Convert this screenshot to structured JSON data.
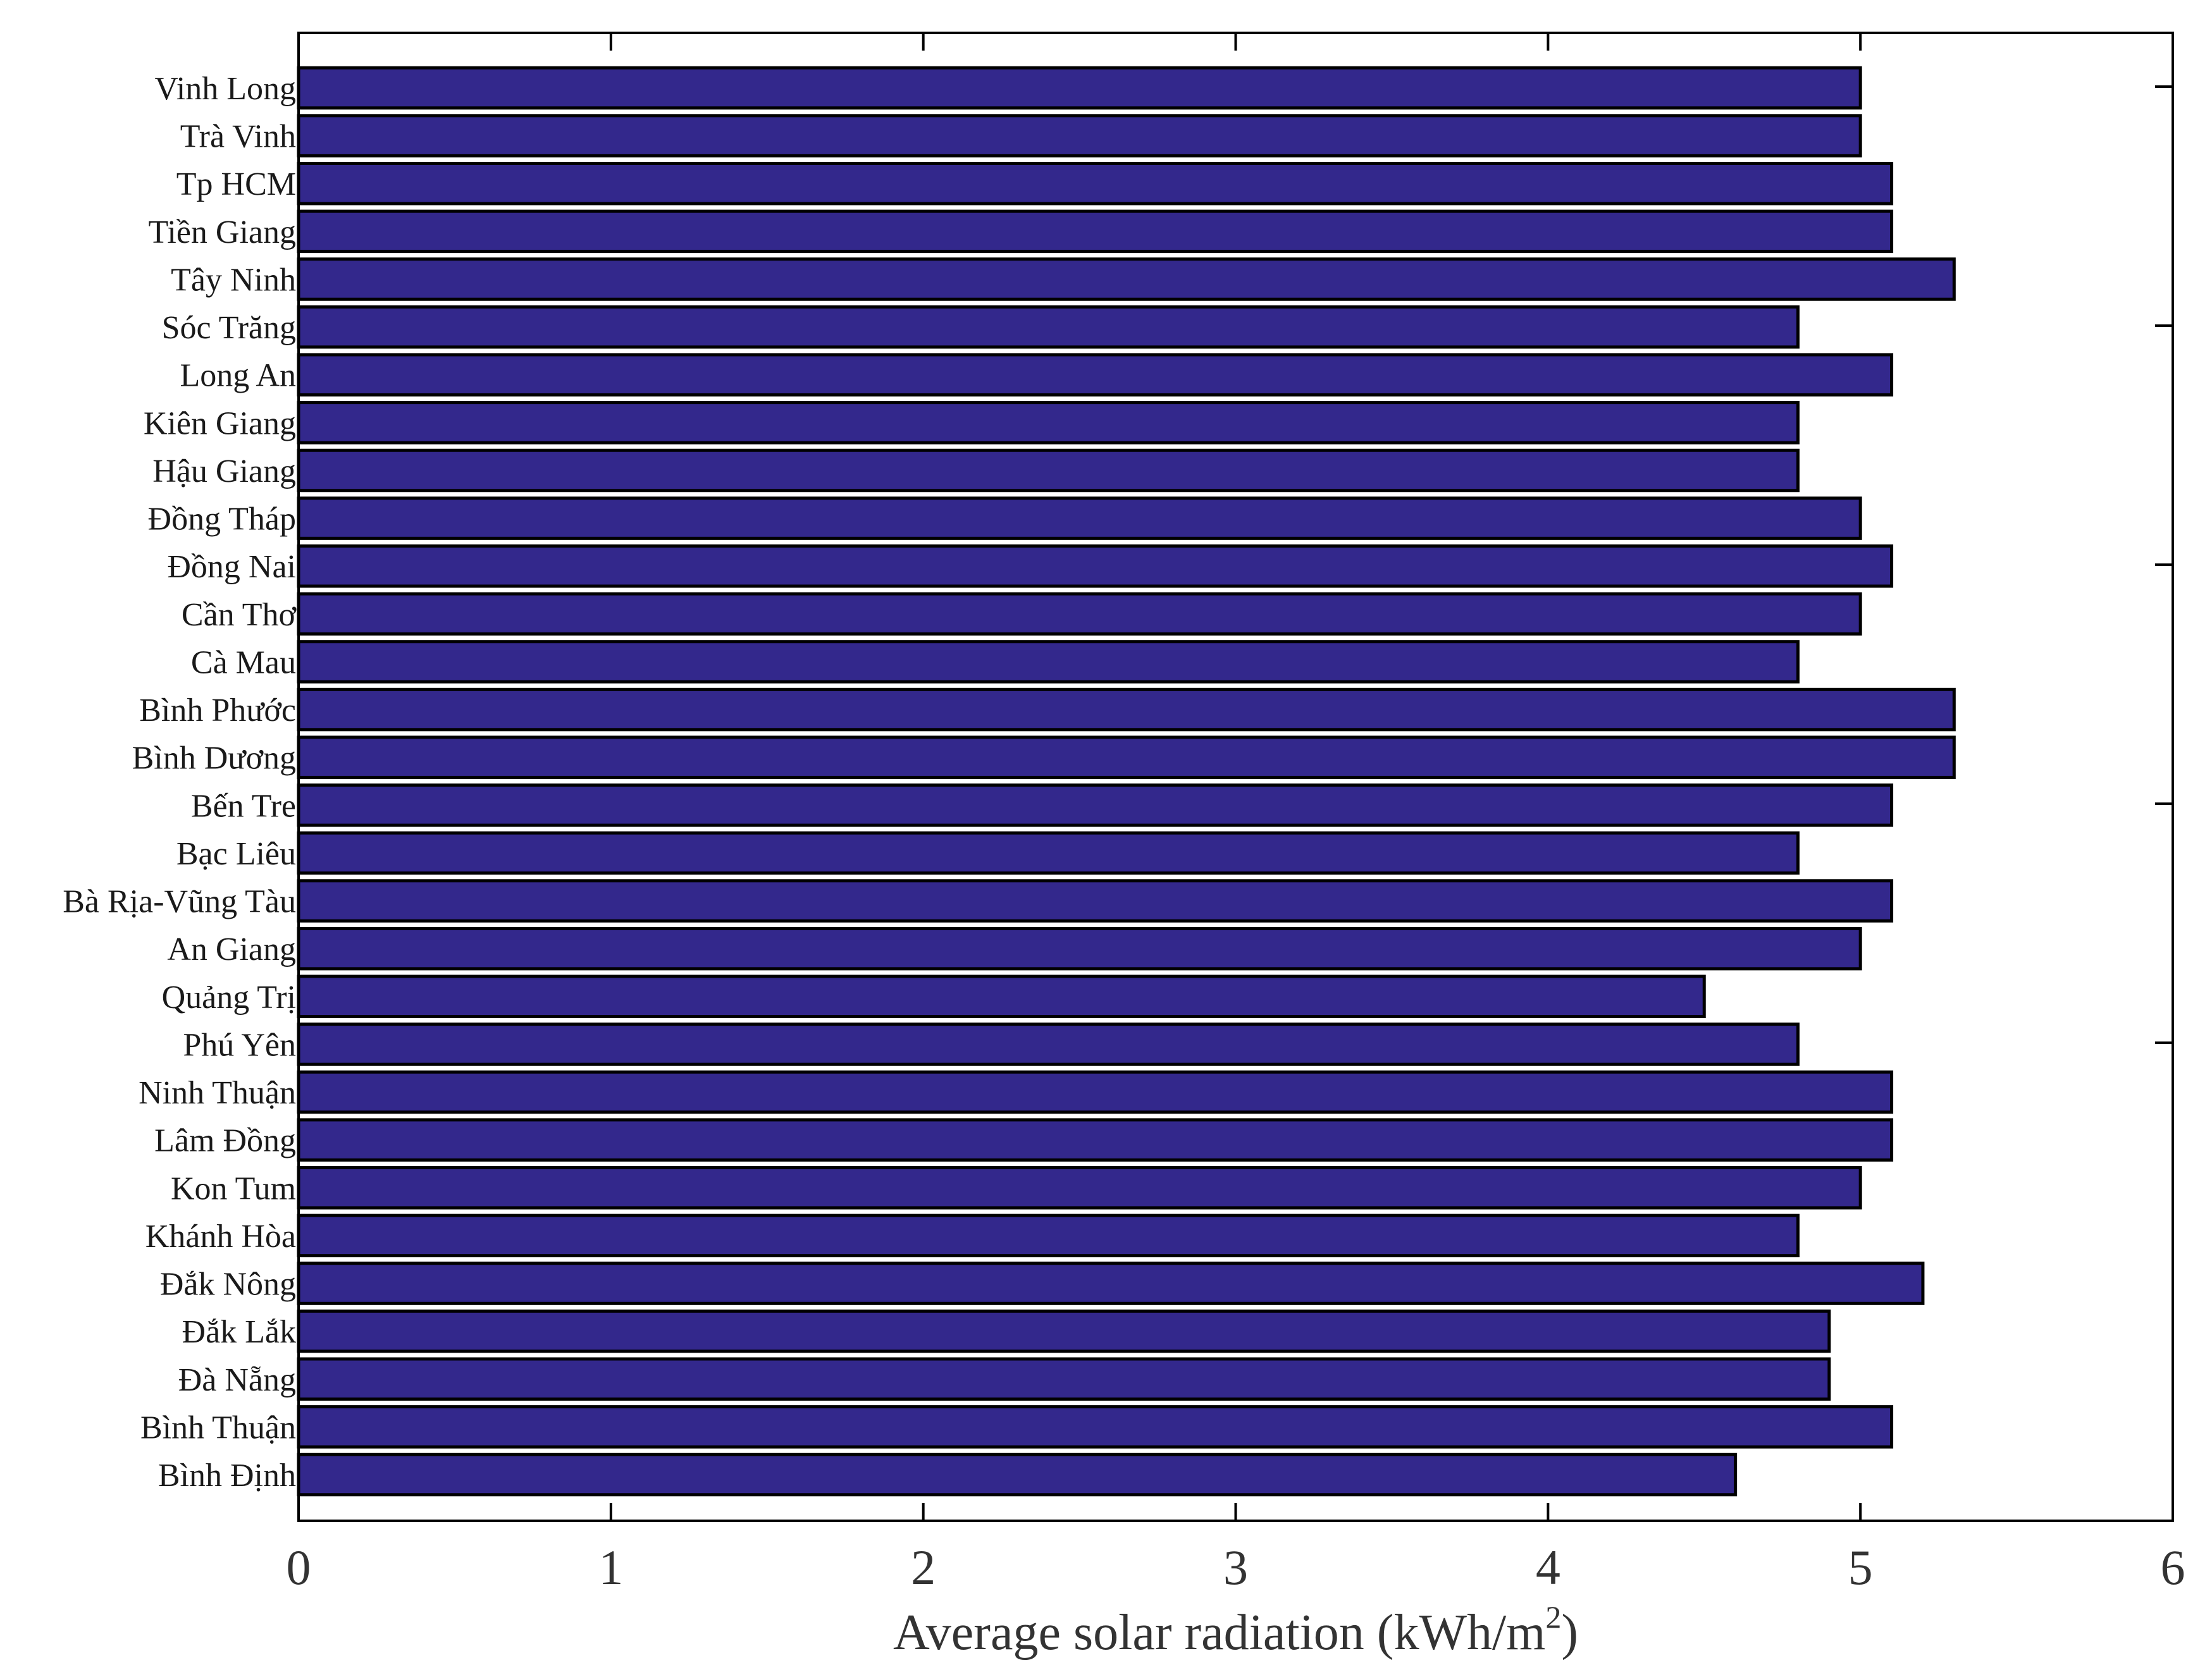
{
  "chart_data": {
    "type": "bar",
    "orientation": "horizontal",
    "categories": [
      "Vinh Long",
      "Trà Vinh",
      "Tp HCM",
      "Tiền Giang",
      "Tây Ninh",
      "Sóc Trăng",
      "Long An",
      "Kiên Giang",
      "Hậu Giang",
      "Đồng Tháp",
      "Đồng Nai",
      "Cần Thơ",
      "Cà Mau",
      "Bình Phước",
      "Bình Dương",
      "Bến Tre",
      "Bạc Liêu",
      "Bà Rịa-Vũng Tàu",
      "An Giang",
      "Quảng Trị",
      "Phú Yên",
      "Ninh Thuận",
      "Lâm Đồng",
      "Kon Tum",
      "Khánh Hòa",
      "Đắk Nông",
      "Đắk Lắk",
      "Đà Nẵng",
      "Bình Thuận",
      "Bình Định"
    ],
    "values": [
      5.0,
      5.0,
      5.1,
      5.1,
      5.3,
      4.8,
      5.1,
      4.8,
      4.8,
      5.0,
      5.1,
      5.0,
      4.8,
      5.3,
      5.3,
      5.1,
      4.8,
      5.1,
      5.0,
      4.5,
      4.8,
      5.1,
      5.1,
      5.0,
      4.8,
      5.2,
      4.9,
      4.9,
      5.1,
      4.6
    ],
    "xlabel": "Average solar radiation (kWh/m",
    "xlabel_sup": "2",
    "xlabel_end": ")",
    "xlim": [
      0,
      6
    ],
    "xticks": [
      "0",
      "1",
      "2",
      "3",
      "4",
      "5",
      "6"
    ],
    "bar_color": "#33288c",
    "bar_edge_color": "#000000",
    "grid": false
  }
}
